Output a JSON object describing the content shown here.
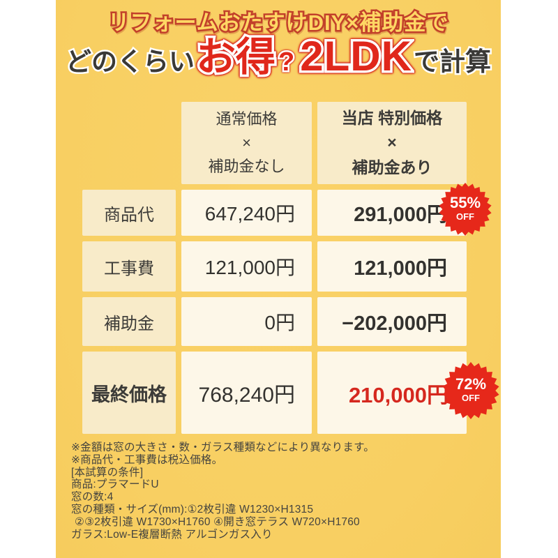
{
  "title": {
    "line1": "リフォームおたすけDIY×補助金で",
    "line2_prefix": "どのくらい",
    "line2_highlight": "お得",
    "line2_question": "?",
    "line2_room": "2LDK",
    "line2_suffix": "で計算"
  },
  "table": {
    "col_normal_header": {
      "line1": "通常価格",
      "line2": "×",
      "line3": "補助金なし"
    },
    "col_special_header": {
      "line1": "当店 特別価格",
      "line2": "×",
      "line3": "補助金あり"
    },
    "rows": [
      {
        "label": "商品代",
        "normal": "647,240円",
        "special": "291,000円"
      },
      {
        "label": "工事費",
        "normal": "121,000円",
        "special": "121,000円"
      },
      {
        "label": "補助金",
        "normal": "0円",
        "special": "−202,000円"
      },
      {
        "label": "最終価格",
        "normal": "768,240円",
        "special": "210,000円"
      }
    ],
    "badges": [
      {
        "percent": "55%",
        "off": "OFF"
      },
      {
        "percent": "72%",
        "off": "OFF"
      }
    ]
  },
  "notes": [
    "※金額は窓の大きさ・数・ガラス種類などにより異なります。",
    "※商品代・工事費は税込価格。",
    "[本試算の条件]",
    "商品:プラマードU",
    "窓の数:4",
    "窓の種類・サイズ(mm):①2枚引違 W1230×H1315",
    "②③2枚引違 W1730×H1760 ④開き窓テラス W720×H1760",
    "ガラス:Low-E複層断熱 アルゴンガス入り"
  ],
  "colors": {
    "background_yellow": "#f8cf62",
    "cream_dark": "#f8ebc9",
    "cream_light": "#fdf7e8",
    "accent_red": "#e0271b",
    "badge_red": "#e6281a",
    "price_red": "#d5281e",
    "text_dark": "#3a3936",
    "title_outline_red": "#c2402a",
    "title_fill_yellow": "#ffd764"
  }
}
